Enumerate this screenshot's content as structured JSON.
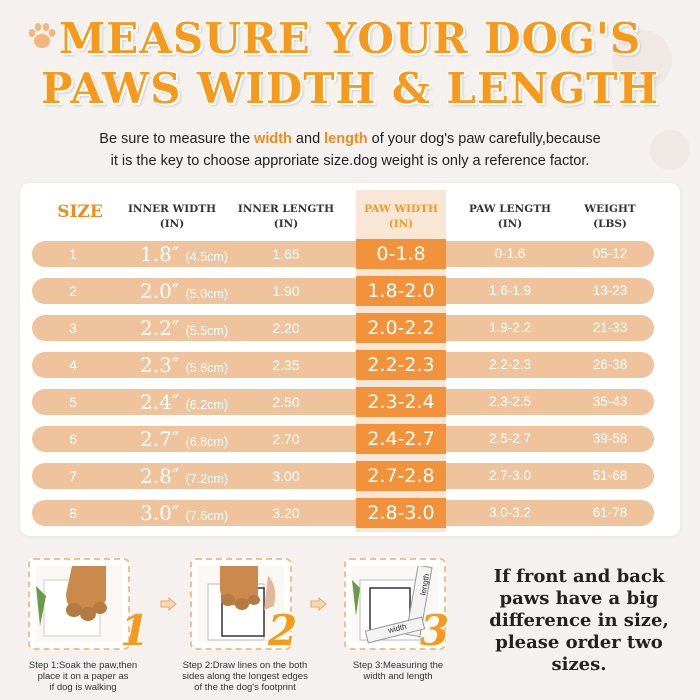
{
  "title": {
    "line1": "MEASURE YOUR DOG'S",
    "line2": "PAWS WIDTH & LENGTH"
  },
  "intro": {
    "p1": "Be sure to measure the ",
    "width": "width",
    "p2": " and ",
    "length": "length",
    "p3": " of your dog's paw carefully,because",
    "line2": "it is the key to choose approriate size.dog weight is only a reference factor."
  },
  "table": {
    "headers": {
      "size": "SIZE",
      "inner_width": [
        "INNER WIDTH",
        "(IN)"
      ],
      "inner_length": [
        "INNER LENGTH",
        "(IN)"
      ],
      "paw_width": [
        "PAW WIDTH",
        "(IN)"
      ],
      "paw_length": [
        "PAW LENGTH",
        "(IN)"
      ],
      "weight": [
        "WEIGHT",
        "(LBS)"
      ]
    },
    "rows": [
      {
        "size": "1",
        "inner_width": "1.8″",
        "inner_width_cm": "(4.5cm)",
        "inner_length": "1.65",
        "paw_width": "0-1.8",
        "paw_length": "0-1.6",
        "weight": "05-12"
      },
      {
        "size": "2",
        "inner_width": "2.0″",
        "inner_width_cm": "(5.0cm)",
        "inner_length": "1.90",
        "paw_width": "1.8-2.0",
        "paw_length": "1.6-1.9",
        "weight": "13-23"
      },
      {
        "size": "3",
        "inner_width": "2.2″",
        "inner_width_cm": "(5.5cm)",
        "inner_length": "2.20",
        "paw_width": "2.0-2.2",
        "paw_length": "1.9-2.2",
        "weight": "21-33"
      },
      {
        "size": "4",
        "inner_width": "2.3″",
        "inner_width_cm": "(5.8cm)",
        "inner_length": "2.35",
        "paw_width": "2.2-2.3",
        "paw_length": "2.2-2.3",
        "weight": "26-38"
      },
      {
        "size": "5",
        "inner_width": "2.4″",
        "inner_width_cm": "(6.2cm)",
        "inner_length": "2.50",
        "paw_width": "2.3-2.4",
        "paw_length": "2.3-2.5",
        "weight": "35-43"
      },
      {
        "size": "6",
        "inner_width": "2.7″",
        "inner_width_cm": "(6.8cm)",
        "inner_length": "2.70",
        "paw_width": "2.4-2.7",
        "paw_length": "2.5-2.7",
        "weight": "39-58"
      },
      {
        "size": "7",
        "inner_width": "2.8″",
        "inner_width_cm": "(7.2cm)",
        "inner_length": "3.00",
        "paw_width": "2.7-2.8",
        "paw_length": "2.7-3.0",
        "weight": "51-68"
      },
      {
        "size": "8",
        "inner_width": "3.0″",
        "inner_width_cm": "(7.6cm)",
        "inner_length": "3.20",
        "paw_width": "2.8-3.0",
        "paw_length": "3.0-3.2",
        "weight": "61-78"
      }
    ]
  },
  "steps": [
    {
      "number": "1",
      "caption": [
        "Step 1:Soak the paw,then",
        "place it on a  paper as",
        "if dog is walking"
      ]
    },
    {
      "number": "2",
      "caption": [
        "Step 2:Draw lines on the both",
        "sides along the longest edges",
        "of the the dog's footprint"
      ]
    },
    {
      "number": "3",
      "caption": [
        "Step 3:Measuring the",
        "width and length"
      ],
      "ruler_length": "length",
      "ruler_width": "width"
    }
  ],
  "note": [
    "If front and back",
    "paws have a big",
    "difference in size,",
    "please order two",
    "sizes."
  ],
  "colors": {
    "title": "#f59a1c",
    "row": "#efc39b",
    "paw_width_cell": "#f2923a",
    "accent": "#f08b1d"
  },
  "icons": [
    "paw-print-icon",
    "arrow-right-icon",
    "dog-paw-photo",
    "ruler-icon"
  ]
}
